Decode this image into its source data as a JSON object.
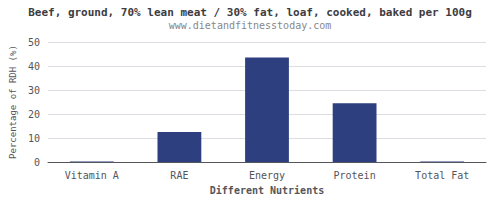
{
  "chart_data": {
    "type": "bar",
    "title": "Beef, ground, 70% lean meat / 30% fat, loaf, cooked, baked per 100g",
    "subtitle": "www.dietandfitnesstoday.com",
    "xlabel": "Different Nutrients",
    "ylabel": "Percentage of RDH (%)",
    "categories": [
      "Vitamin A",
      "RAE",
      "Energy",
      "Protein",
      "Total Fat"
    ],
    "values": [
      0.3,
      12.5,
      43.5,
      24.5,
      0.3
    ],
    "color": "#2d3f7f",
    "ylim": [
      0,
      50
    ],
    "yticks": [
      0,
      10,
      20,
      30,
      40,
      50
    ],
    "grid": true
  }
}
